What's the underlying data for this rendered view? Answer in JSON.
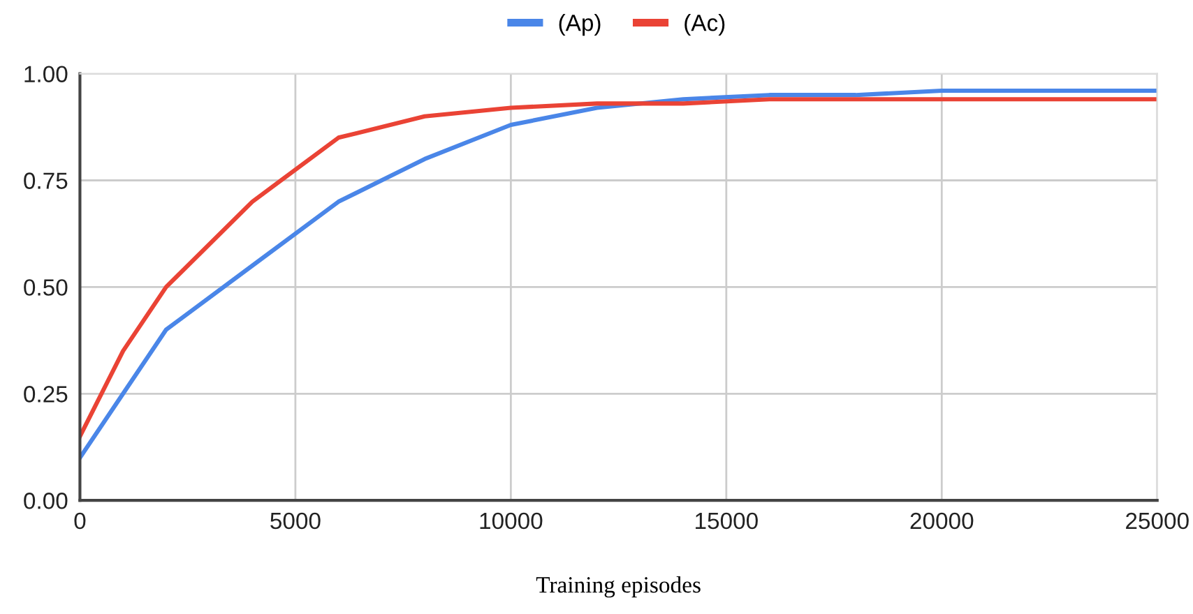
{
  "chart_data": {
    "type": "line",
    "xlabel": "Training episodes",
    "series": [
      {
        "name": "(Ap)",
        "color": "#4a86e8",
        "x": [
          0,
          1000,
          2000,
          4000,
          6000,
          8000,
          10000,
          12000,
          14000,
          16000,
          18000,
          20000,
          25000
        ],
        "values": [
          0.1,
          0.25,
          0.4,
          0.55,
          0.7,
          0.8,
          0.88,
          0.92,
          0.94,
          0.95,
          0.95,
          0.96,
          0.96
        ]
      },
      {
        "name": "(Ac)",
        "color": "#ea4335",
        "x": [
          0,
          1000,
          2000,
          4000,
          6000,
          8000,
          10000,
          12000,
          14000,
          16000,
          25000
        ],
        "values": [
          0.15,
          0.35,
          0.5,
          0.7,
          0.85,
          0.9,
          0.92,
          0.93,
          0.93,
          0.94,
          0.94
        ]
      }
    ],
    "xlim": [
      0,
      25000
    ],
    "xticks": [
      0,
      5000,
      10000,
      15000,
      20000,
      25000
    ],
    "ylim": [
      0,
      1
    ],
    "yticks": [
      {
        "value": 0,
        "label": "0.00"
      },
      {
        "value": 0.25,
        "label": "0.25"
      },
      {
        "value": 0.5,
        "label": "0.50"
      },
      {
        "value": 0.75,
        "label": "0.75"
      },
      {
        "value": 1,
        "label": "1.00"
      }
    ],
    "grid": true,
    "legend": "top",
    "marker": "none",
    "line_style": "solid"
  }
}
